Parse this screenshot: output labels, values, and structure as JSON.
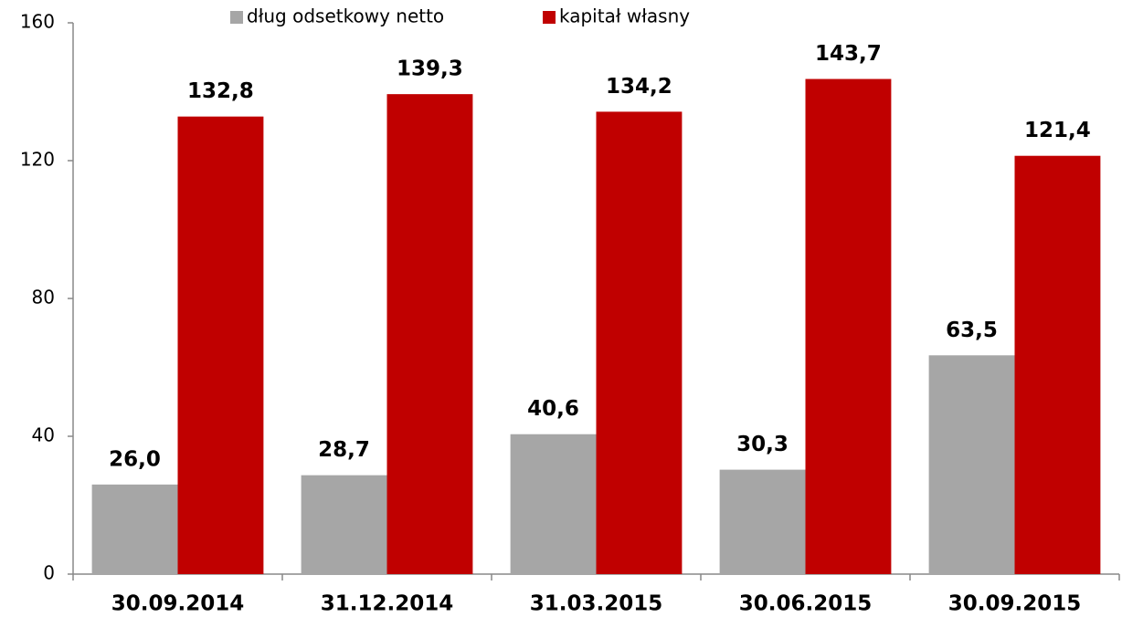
{
  "chart_data": {
    "type": "bar",
    "categories": [
      "30.09.2014",
      "31.12.2014",
      "31.03.2015",
      "30.06.2015",
      "30.09.2015"
    ],
    "series": [
      {
        "name": "dług odsetkowy netto",
        "color": "#a6a6a6",
        "values": [
          26.0,
          28.7,
          40.6,
          30.3,
          63.5
        ],
        "value_labels": [
          "26,0",
          "28,7",
          "40,6",
          "30,3",
          "63,5"
        ]
      },
      {
        "name": "kapitał własny",
        "color": "#c00000",
        "values": [
          132.8,
          139.3,
          134.2,
          143.7,
          121.4
        ],
        "value_labels": [
          "132,8",
          "139,3",
          "134,2",
          "143,7",
          "121,4"
        ]
      }
    ],
    "ylim": [
      0,
      160
    ],
    "yticks": [
      0,
      40,
      80,
      120,
      160
    ],
    "grid": false,
    "legend": "top"
  }
}
